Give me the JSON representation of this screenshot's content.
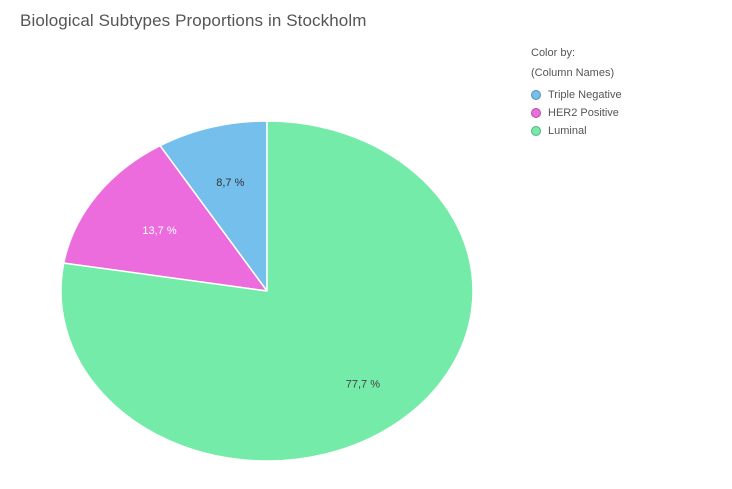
{
  "chart_data": {
    "type": "pie",
    "title": "Biological Subtypes Proportions in Stockholm",
    "legend_title": "Color by:",
    "legend_subtitle": "(Column Names)",
    "legend_position": "top-right",
    "slices": [
      {
        "name": "Triple Negative",
        "value": 8.7,
        "label": "8,7 %",
        "color": "#74BFEB"
      },
      {
        "name": "HER2 Positive",
        "value": 13.7,
        "label": "13,7 %",
        "color": "#EC6BDD"
      },
      {
        "name": "Luminal",
        "value": 77.7,
        "label": "77,7 %",
        "color": "#74EBA9"
      }
    ]
  }
}
